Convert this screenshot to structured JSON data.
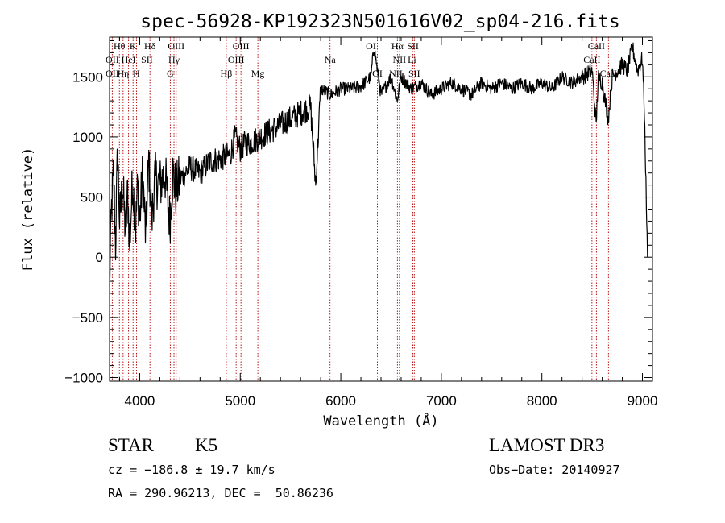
{
  "chart_data": {
    "type": "line",
    "title": "spec-56928-KP192323N501616V02_sp04-216.fits",
    "xlabel": "Wavelength (Å)",
    "ylabel": "Flux (relative)",
    "xlim": [
      3700,
      9100
    ],
    "ylim": [
      -1030,
      1830
    ],
    "xticks": [
      4000,
      5000,
      6000,
      7000,
      8000,
      9000
    ],
    "xtick_labels": [
      "4000",
      "5000",
      "6000",
      "7000",
      "8000",
      "9000"
    ],
    "yticks": [
      -1000,
      -500,
      0,
      500,
      1000,
      1500
    ],
    "ytick_labels": [
      "−1000",
      "−500",
      "0",
      "500",
      "1000",
      "1500"
    ],
    "series": [
      {
        "name": "spectrum",
        "x": [
          3700,
          3720,
          3740,
          3760,
          3780,
          3800,
          3830,
          3860,
          3880,
          3900,
          3930,
          3960,
          3980,
          4000,
          4030,
          4060,
          4090,
          4120,
          4150,
          4200,
          4250,
          4300,
          4330,
          4360,
          4400,
          4450,
          4500,
          4600,
          4700,
          4800,
          4900,
          4950,
          5000,
          5050,
          5100,
          5200,
          5300,
          5400,
          5500,
          5600,
          5700,
          5750,
          5800,
          5900,
          6000,
          6100,
          6200,
          6300,
          6330,
          6400,
          6500,
          6560,
          6600,
          6700,
          6800,
          6900,
          7000,
          7100,
          7200,
          7300,
          7400,
          7500,
          7600,
          7700,
          7800,
          7900,
          8000,
          8100,
          8200,
          8300,
          8400,
          8500,
          8540,
          8560,
          8600,
          8660,
          8700,
          8800,
          8850,
          8900,
          8950,
          9000,
          9020,
          9050
        ],
        "y": [
          -200,
          400,
          700,
          100,
          900,
          300,
          600,
          200,
          550,
          100,
          650,
          250,
          600,
          300,
          700,
          150,
          800,
          300,
          650,
          600,
          700,
          300,
          700,
          550,
          650,
          700,
          750,
          700,
          800,
          820,
          850,
          1000,
          900,
          950,
          950,
          1000,
          1050,
          1100,
          1150,
          1200,
          1250,
          600,
          1400,
          1350,
          1400,
          1400,
          1420,
          1500,
          1750,
          1350,
          1500,
          1300,
          1500,
          1400,
          1450,
          1350,
          1400,
          1450,
          1400,
          1350,
          1450,
          1400,
          1450,
          1400,
          1450,
          1400,
          1450,
          1400,
          1500,
          1450,
          1500,
          1550,
          1100,
          1500,
          1450,
          1150,
          1500,
          1600,
          1550,
          1750,
          1550,
          1650,
          1200,
          0
        ]
      }
    ],
    "reference_lines": [
      {
        "name": "OII",
        "wavelength": 3727
      },
      {
        "name": "Hθ",
        "wavelength": 3798
      },
      {
        "name": "Hη",
        "wavelength": 3835
      },
      {
        "name": "HeI",
        "wavelength": 3889
      },
      {
        "name": "K",
        "wavelength": 3934
      },
      {
        "name": "H",
        "wavelength": 3968
      },
      {
        "name": "SII",
        "wavelength": 4072
      },
      {
        "name": "Hδ",
        "wavelength": 4102
      },
      {
        "name": "G",
        "wavelength": 4304
      },
      {
        "name": "Hγ",
        "wavelength": 4341
      },
      {
        "name": "OIII",
        "wavelength": 4363
      },
      {
        "name": "Hβ",
        "wavelength": 4861
      },
      {
        "name": "OIII",
        "wavelength": 4959
      },
      {
        "name": "OIII",
        "wavelength": 5007
      },
      {
        "name": "Mg",
        "wavelength": 5175
      },
      {
        "name": "Na",
        "wavelength": 5893
      },
      {
        "name": "OI",
        "wavelength": 6300
      },
      {
        "name": "OI",
        "wavelength": 6364
      },
      {
        "name": "NII",
        "wavelength": 6548
      },
      {
        "name": "Hα",
        "wavelength": 6563
      },
      {
        "name": "NII",
        "wavelength": 6583
      },
      {
        "name": "Li",
        "wavelength": 6708
      },
      {
        "name": "SII",
        "wavelength": 6717
      },
      {
        "name": "SII",
        "wavelength": 6731
      },
      {
        "name": "CaII",
        "wavelength": 8498
      },
      {
        "name": "CaII",
        "wavelength": 8542
      },
      {
        "name": "CaII",
        "wavelength": 8662
      }
    ],
    "line_labels": [
      {
        "text": "Hθ",
        "wavelength": 3798,
        "row": 0
      },
      {
        "text": "K",
        "wavelength": 3934,
        "row": 0
      },
      {
        "text": "Hδ",
        "wavelength": 4102,
        "row": 0
      },
      {
        "text": "OIII",
        "wavelength": 4363,
        "row": 0
      },
      {
        "text": "OIII",
        "wavelength": 5007,
        "row": 0
      },
      {
        "text": "OI",
        "wavelength": 6300,
        "row": 0
      },
      {
        "text": "Hα",
        "wavelength": 6563,
        "row": 0
      },
      {
        "text": "SII",
        "wavelength": 6717,
        "row": 0
      },
      {
        "text": "CaII",
        "wavelength": 8542,
        "row": 0
      },
      {
        "text": "OII",
        "wavelength": 3727,
        "row": 1
      },
      {
        "text": "HeI",
        "wavelength": 3889,
        "row": 1
      },
      {
        "text": "SII",
        "wavelength": 4072,
        "row": 1
      },
      {
        "text": "Hγ",
        "wavelength": 4341,
        "row": 1
      },
      {
        "text": "OIII",
        "wavelength": 4959,
        "row": 1
      },
      {
        "text": "Na",
        "wavelength": 5893,
        "row": 1
      },
      {
        "text": "NII",
        "wavelength": 6583,
        "row": 1
      },
      {
        "text": "Li",
        "wavelength": 6708,
        "row": 1
      },
      {
        "text": "CaII",
        "wavelength": 8498,
        "row": 1
      },
      {
        "text": "OII",
        "wavelength": 3727,
        "row": 2
      },
      {
        "text": "Hη",
        "wavelength": 3835,
        "row": 2
      },
      {
        "text": "H",
        "wavelength": 3968,
        "row": 2
      },
      {
        "text": "G",
        "wavelength": 4304,
        "row": 2
      },
      {
        "text": "Hβ",
        "wavelength": 4861,
        "row": 2
      },
      {
        "text": "Mg",
        "wavelength": 5175,
        "row": 2
      },
      {
        "text": "OI",
        "wavelength": 6364,
        "row": 2
      },
      {
        "text": "NII",
        "wavelength": 6548,
        "row": 2
      },
      {
        "text": "SII",
        "wavelength": 6731,
        "row": 2
      },
      {
        "text": "CaII",
        "wavelength": 8662,
        "row": 2
      }
    ],
    "spectrum_color": "#000000",
    "reference_line_color": "#b00000",
    "grid": false
  },
  "info": {
    "object_class": "STAR",
    "subclass": "K5",
    "survey": "LAMOST DR3",
    "cz": "cz = −186.8 ± 19.7 km/s",
    "obs_date": "Obs−Date: 20140927",
    "coords": "RA = 290.96213, DEC =  50.86236"
  }
}
